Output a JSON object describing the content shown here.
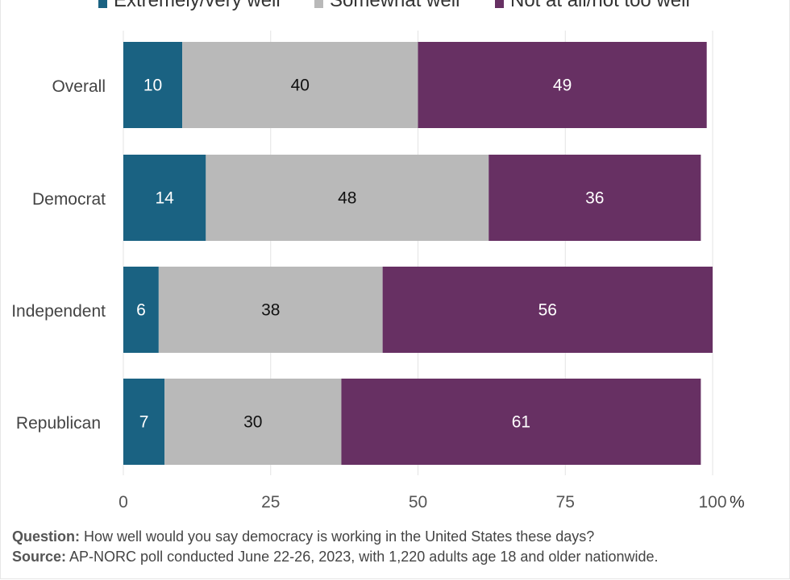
{
  "chart_data": {
    "type": "bar",
    "orientation": "horizontal",
    "stacked": true,
    "categories": [
      "Overall",
      "Democrat",
      "Independent",
      "Republican"
    ],
    "series": [
      {
        "name": "Extremely/very well",
        "values": [
          10,
          14,
          6,
          7
        ],
        "color": "#1a6282",
        "label_color": "#ffffff"
      },
      {
        "name": "Somewhat well",
        "values": [
          40,
          48,
          38,
          30
        ],
        "color": "#b9b9b9",
        "label_color": "#111111"
      },
      {
        "name": "Not at all/not too well",
        "values": [
          49,
          36,
          56,
          61
        ],
        "color": "#673063",
        "label_color": "#ffffff"
      }
    ],
    "xlim": [
      0,
      100
    ],
    "xticks": [
      "0",
      "25",
      "50",
      "75",
      "100"
    ],
    "xunit": "%",
    "grid": true,
    "legend_position": "top"
  },
  "notes": {
    "question_label": "Question:",
    "question_text": " How well would you say democracy is working in the United States these days?",
    "source_label": "Source:",
    "source_text": " AP-NORC poll conducted June 22-26, 2023, with 1,220 adults age 18 and older nationwide."
  }
}
